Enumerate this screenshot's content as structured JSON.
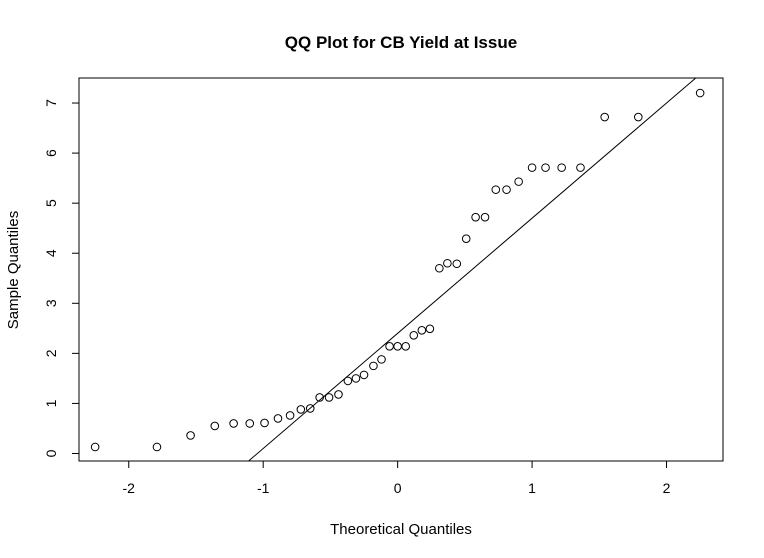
{
  "chart_data": {
    "type": "scatter",
    "title": "QQ Plot for CB Yield at Issue",
    "xlabel": "Theoretical Quantiles",
    "ylabel": "Sample Quantiles",
    "xlim": [
      -2.37,
      2.42
    ],
    "ylim": [
      -0.15,
      7.5
    ],
    "x_ticks": [
      -2,
      -1,
      0,
      1,
      2
    ],
    "y_ticks": [
      0,
      1,
      2,
      3,
      4,
      5,
      6,
      7
    ],
    "grid": false,
    "legend": "none",
    "points": [
      {
        "x": -2.25,
        "y": 0.13
      },
      {
        "x": -1.79,
        "y": 0.13
      },
      {
        "x": -1.54,
        "y": 0.36
      },
      {
        "x": -1.36,
        "y": 0.55
      },
      {
        "x": -1.22,
        "y": 0.6
      },
      {
        "x": -1.1,
        "y": 0.6
      },
      {
        "x": -0.99,
        "y": 0.61
      },
      {
        "x": -0.89,
        "y": 0.7
      },
      {
        "x": -0.8,
        "y": 0.76
      },
      {
        "x": -0.72,
        "y": 0.88
      },
      {
        "x": -0.65,
        "y": 0.9
      },
      {
        "x": -0.58,
        "y": 1.12
      },
      {
        "x": -0.51,
        "y": 1.12
      },
      {
        "x": -0.44,
        "y": 1.18
      },
      {
        "x": -0.37,
        "y": 1.45
      },
      {
        "x": -0.31,
        "y": 1.5
      },
      {
        "x": -0.25,
        "y": 1.57
      },
      {
        "x": -0.18,
        "y": 1.75
      },
      {
        "x": -0.12,
        "y": 1.88
      },
      {
        "x": -0.06,
        "y": 2.14
      },
      {
        "x": 0.0,
        "y": 2.14
      },
      {
        "x": 0.06,
        "y": 2.14
      },
      {
        "x": 0.12,
        "y": 2.36
      },
      {
        "x": 0.18,
        "y": 2.46
      },
      {
        "x": 0.24,
        "y": 2.49
      },
      {
        "x": 0.31,
        "y": 3.7
      },
      {
        "x": 0.37,
        "y": 3.8
      },
      {
        "x": 0.44,
        "y": 3.79
      },
      {
        "x": 0.51,
        "y": 4.29
      },
      {
        "x": 0.58,
        "y": 4.72
      },
      {
        "x": 0.65,
        "y": 4.72
      },
      {
        "x": 0.73,
        "y": 5.27
      },
      {
        "x": 0.81,
        "y": 5.27
      },
      {
        "x": 0.9,
        "y": 5.43
      },
      {
        "x": 1.0,
        "y": 5.71
      },
      {
        "x": 1.1,
        "y": 5.71
      },
      {
        "x": 1.22,
        "y": 5.71
      },
      {
        "x": 1.36,
        "y": 5.71
      },
      {
        "x": 1.54,
        "y": 6.72
      },
      {
        "x": 1.79,
        "y": 6.72
      },
      {
        "x": 2.25,
        "y": 7.2
      }
    ],
    "reference_line": {
      "intercept": 2.4,
      "slope": 2.3
    }
  }
}
